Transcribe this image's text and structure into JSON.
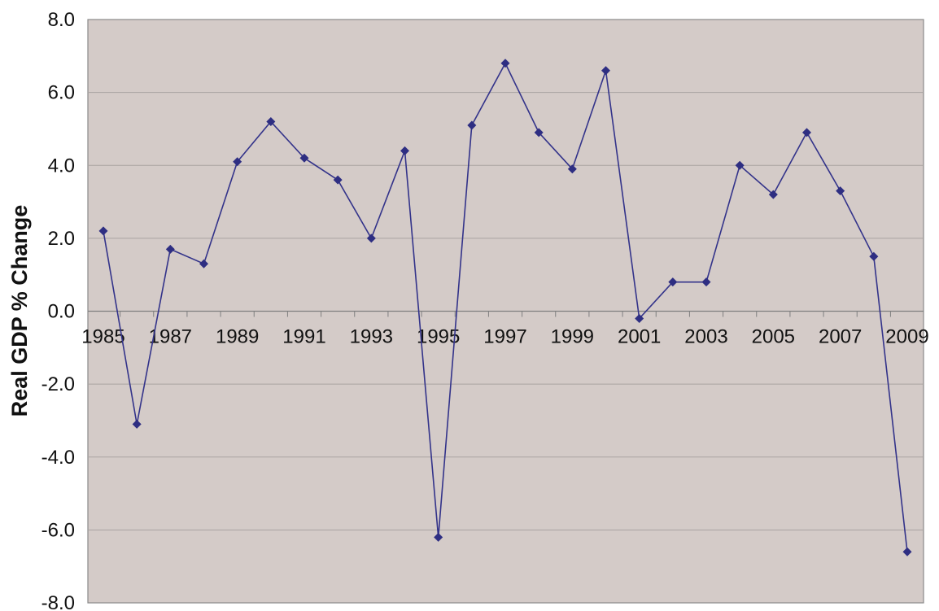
{
  "chart_data": {
    "type": "line",
    "title": "",
    "xlabel": "",
    "ylabel": "Real GDP % Change",
    "ylim": [
      -8,
      8
    ],
    "grid": true,
    "legend": "none",
    "x": [
      1985,
      1986,
      1987,
      1988,
      1989,
      1990,
      1991,
      1992,
      1993,
      1994,
      1995,
      1996,
      1997,
      1998,
      1999,
      2000,
      2001,
      2002,
      2003,
      2004,
      2005,
      2006,
      2007,
      2008,
      2009
    ],
    "x_tick_labels": [
      "1985",
      "1987",
      "1989",
      "1991",
      "1993",
      "1995",
      "1997",
      "1999",
      "2001",
      "2003",
      "2005",
      "2007",
      "2009"
    ],
    "y_tick_labels": [
      "8.0",
      "6.0",
      "4.0",
      "2.0",
      "0.0",
      "-2.0",
      "-4.0",
      "-6.0",
      "-8.0"
    ],
    "series": [
      {
        "values": [
          2.2,
          -3.1,
          1.7,
          1.3,
          4.1,
          5.2,
          4.2,
          3.6,
          2.0,
          4.4,
          -6.2,
          5.1,
          6.8,
          4.9,
          3.9,
          6.6,
          -0.2,
          0.8,
          0.8,
          4.0,
          3.2,
          4.9,
          3.3,
          1.5,
          -6.6
        ]
      }
    ],
    "colors": {
      "plot_background": "#d4cbc8",
      "line": "#33338a",
      "marker": "#2e2e82",
      "grid": "#a9a3a1",
      "axis": "#7f7f7f"
    }
  }
}
